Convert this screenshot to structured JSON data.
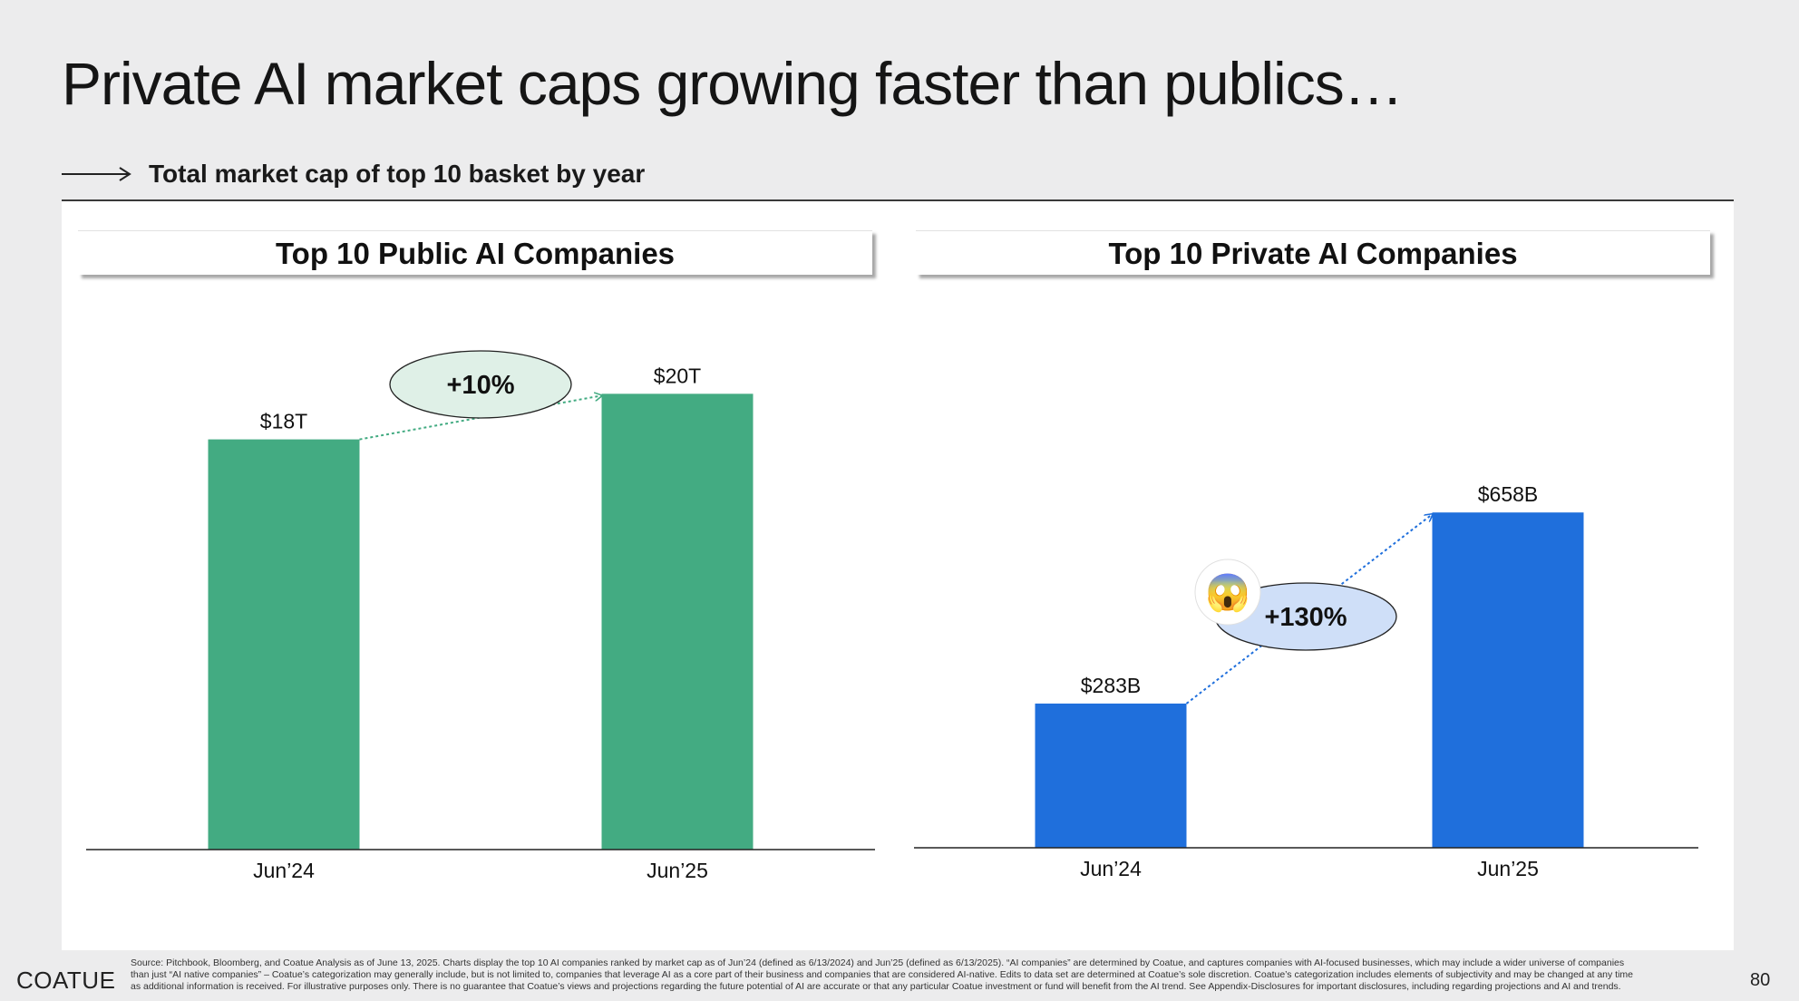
{
  "page": {
    "title": "Private AI market caps growing faster than publics…",
    "subtitle": "Total market cap of top 10 basket by year",
    "logo": "COATUE",
    "page_number": "80",
    "footnote": "Source: Pitchbook, Bloomberg, and Coatue Analysis  as of June 13, 2025. Charts display the top 10 AI companies ranked by market cap as of Jun’24 (defined as 6/13/2024) and Jun’25 (defined as 6/13/2025). “AI companies” are determined by Coatue, and captures companies with AI-focused businesses, which may include a wider universe of companies than just “AI native companies” – Coatue’s categorization may generally include, but is not limited to, companies that leverage AI as a core part of their business and companies that are considered AI-native. Edits to data set are determined at Coatue’s sole discretion. Coatue’s categorization includes elements of subjectivity and may be changed at any time as additional information is received. For illustrative purposes only. There is no guarantee that Coatue’s views and projections regarding the future potential of AI are accurate or that any particular Coatue investment or fund will benefit from the AI trend. See Appendix-Disclosures for important disclosures, including regarding projections and AI and trends."
  },
  "chart_data": [
    {
      "type": "bar",
      "title": "Top 10 Public AI Companies",
      "categories": [
        "Jun’24",
        "Jun’25"
      ],
      "values": [
        18,
        20
      ],
      "unit": "T",
      "data_labels": [
        "$18T",
        "$20T"
      ],
      "growth_label": "+10%",
      "color": "#43ab82",
      "ylim": [
        0,
        22.4
      ]
    },
    {
      "type": "bar",
      "title": "Top 10 Private AI Companies",
      "categories": [
        "Jun’24",
        "Jun’25"
      ],
      "values": [
        283,
        658
      ],
      "unit": "B",
      "data_labels": [
        "$283B",
        "$658B"
      ],
      "growth_label": "+130%",
      "emoji": "😱",
      "color": "#1f6fdc",
      "ylim": [
        0,
        1000
      ]
    }
  ]
}
